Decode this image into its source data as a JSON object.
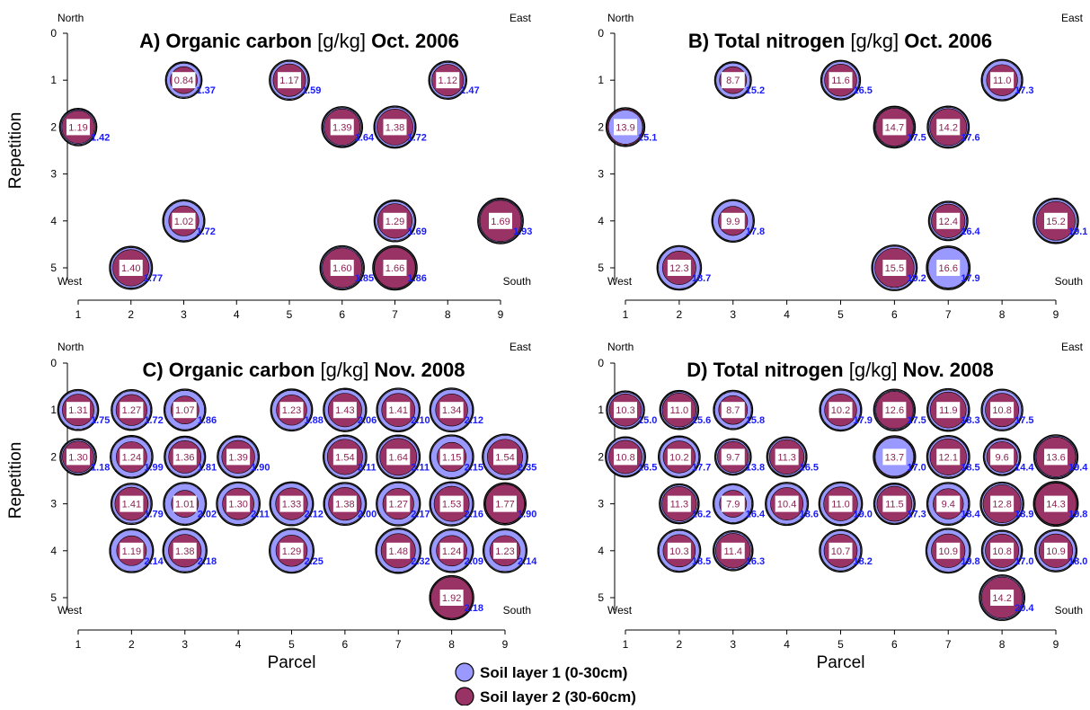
{
  "figure": {
    "legend": [
      {
        "label": "Soil layer 1 (0-30cm)",
        "color": "#9999ff"
      },
      {
        "label": "Soil layer 2 (30-60cm)",
        "color": "#993366"
      }
    ],
    "corner_labels": {
      "north": "North",
      "east": "East",
      "west": "West",
      "south": "South"
    },
    "colors": {
      "layer1": "#9999ff",
      "layer2": "#993366",
      "label1": "#1a1aff",
      "label2": "#8b2252"
    }
  },
  "chart_data": [
    {
      "type": "scatter",
      "title_prefix": "A) Organic carbon ",
      "title_unit": "[g/kg]",
      "title_suffix": " Oct. 2006",
      "xlabel": "",
      "ylabel": "Repetition",
      "xlim": [
        1,
        9
      ],
      "ylim": [
        0,
        5
      ],
      "xticks": [
        "1",
        "2",
        "3",
        "4",
        "5",
        "6",
        "7",
        "8",
        "9"
      ],
      "yticks": [
        "0",
        "1",
        "2",
        "3",
        "4",
        "5"
      ],
      "points": [
        {
          "x": 3,
          "y": 1,
          "layer2": "0.84",
          "layer1": "1.37"
        },
        {
          "x": 5,
          "y": 1,
          "layer2": "1.17",
          "layer1": "1.59"
        },
        {
          "x": 8,
          "y": 1,
          "layer2": "1.12",
          "layer1": "1.47"
        },
        {
          "x": 1,
          "y": 2,
          "layer2": "1.19",
          "layer1": "1.42"
        },
        {
          "x": 6,
          "y": 2,
          "layer2": "1.39",
          "layer1": "1.64"
        },
        {
          "x": 7,
          "y": 2,
          "layer2": "1.38",
          "layer1": "1.72"
        },
        {
          "x": 3,
          "y": 4,
          "layer2": "1.02",
          "layer1": "1.72"
        },
        {
          "x": 7,
          "y": 4,
          "layer2": "1.29",
          "layer1": "1.69"
        },
        {
          "x": 9,
          "y": 4,
          "layer2": "1.69",
          "layer1": "1.93"
        },
        {
          "x": 2,
          "y": 5,
          "layer2": "1.40",
          "layer1": "1.77"
        },
        {
          "x": 6,
          "y": 5,
          "layer2": "1.60",
          "layer1": "1.85"
        },
        {
          "x": 7,
          "y": 5,
          "layer2": "1.66",
          "layer1": "1.86"
        }
      ]
    },
    {
      "type": "scatter",
      "title_prefix": "B) Total nitrogen ",
      "title_unit": "[g/kg]",
      "title_suffix": " Oct. 2006",
      "xlabel": "",
      "ylabel": "",
      "xlim": [
        1,
        9
      ],
      "ylim": [
        0,
        5
      ],
      "xticks": [
        "1",
        "2",
        "3",
        "4",
        "5",
        "6",
        "7",
        "8",
        "9"
      ],
      "yticks": [
        "0",
        "1",
        "2",
        "3",
        "4",
        "5"
      ],
      "points": [
        {
          "x": 3,
          "y": 1,
          "layer2": "8.7",
          "layer1": "15.2"
        },
        {
          "x": 5,
          "y": 1,
          "layer2": "11.6",
          "layer1": "16.5"
        },
        {
          "x": 8,
          "y": 1,
          "layer2": "11.0",
          "layer1": "17.3"
        },
        {
          "x": 1,
          "y": 2,
          "layer2": "13.9",
          "layer1": "15.1"
        },
        {
          "x": 6,
          "y": 2,
          "layer2": "14.7",
          "layer1": "17.5"
        },
        {
          "x": 7,
          "y": 2,
          "layer2": "14.2",
          "layer1": "17.6"
        },
        {
          "x": 3,
          "y": 4,
          "layer2": "9.9",
          "layer1": "17.8"
        },
        {
          "x": 7,
          "y": 4,
          "layer2": "12.4",
          "layer1": "16.4"
        },
        {
          "x": 9,
          "y": 4,
          "layer2": "15.2",
          "layer1": "19.1"
        },
        {
          "x": 2,
          "y": 5,
          "layer2": "12.3",
          "layer1": "18.7"
        },
        {
          "x": 6,
          "y": 5,
          "layer2": "15.5",
          "layer1": "19.2"
        },
        {
          "x": 7,
          "y": 5,
          "layer2": "16.6",
          "layer1": "17.9"
        }
      ]
    },
    {
      "type": "scatter",
      "title_prefix": "C) Organic carbon ",
      "title_unit": "[g/kg]",
      "title_suffix": " Nov. 2008",
      "xlabel": "Parcel",
      "ylabel": "Repetition",
      "xlim": [
        1,
        9
      ],
      "ylim": [
        0,
        5
      ],
      "xticks": [
        "1",
        "2",
        "3",
        "4",
        "5",
        "6",
        "7",
        "8",
        "9"
      ],
      "yticks": [
        "0",
        "1",
        "2",
        "3",
        "4",
        "5"
      ],
      "points": [
        {
          "x": 1,
          "y": 1,
          "layer2": "1.31",
          "layer1": "1.75"
        },
        {
          "x": 2,
          "y": 1,
          "layer2": "1.27",
          "layer1": "1.72"
        },
        {
          "x": 3,
          "y": 1,
          "layer2": "1.07",
          "layer1": "1.86"
        },
        {
          "x": 5,
          "y": 1,
          "layer2": "1.23",
          "layer1": "1.88"
        },
        {
          "x": 6,
          "y": 1,
          "layer2": "1.43",
          "layer1": "2.06"
        },
        {
          "x": 7,
          "y": 1,
          "layer2": "1.41",
          "layer1": "2.10"
        },
        {
          "x": 8,
          "y": 1,
          "layer2": "1.34",
          "layer1": "2.12"
        },
        {
          "x": 1,
          "y": 2,
          "layer2": "1.30",
          "layer1": "1.18"
        },
        {
          "x": 2,
          "y": 2,
          "layer2": "1.24",
          "layer1": "1.99"
        },
        {
          "x": 3,
          "y": 2,
          "layer2": "1.36",
          "layer1": "1.81"
        },
        {
          "x": 4,
          "y": 2,
          "layer2": "1.39",
          "layer1": "1.90"
        },
        {
          "x": 6,
          "y": 2,
          "layer2": "1.54",
          "layer1": "2.11"
        },
        {
          "x": 7,
          "y": 2,
          "layer2": "1.64",
          "layer1": "2.11"
        },
        {
          "x": 8,
          "y": 2,
          "layer2": "1.15",
          "layer1": "2.15"
        },
        {
          "x": 9,
          "y": 2,
          "layer2": "1.54",
          "layer1": "2.35"
        },
        {
          "x": 2,
          "y": 3,
          "layer2": "1.41",
          "layer1": "1.79"
        },
        {
          "x": 3,
          "y": 3,
          "layer2": "1.01",
          "layer1": "2.02"
        },
        {
          "x": 4,
          "y": 3,
          "layer2": "1.30",
          "layer1": "2.11"
        },
        {
          "x": 5,
          "y": 3,
          "layer2": "1.33",
          "layer1": "2.12"
        },
        {
          "x": 6,
          "y": 3,
          "layer2": "1.38",
          "layer1": "2.00"
        },
        {
          "x": 7,
          "y": 3,
          "layer2": "1.27",
          "layer1": "2.17"
        },
        {
          "x": 8,
          "y": 3,
          "layer2": "1.53",
          "layer1": "2.16"
        },
        {
          "x": 9,
          "y": 3,
          "layer2": "1.77",
          "layer1": "1.90"
        },
        {
          "x": 2,
          "y": 4,
          "layer2": "1.19",
          "layer1": "2.14"
        },
        {
          "x": 3,
          "y": 4,
          "layer2": "1.38",
          "layer1": "2.18"
        },
        {
          "x": 5,
          "y": 4,
          "layer2": "1.29",
          "layer1": "2.25"
        },
        {
          "x": 7,
          "y": 4,
          "layer2": "1.48",
          "layer1": "2.32"
        },
        {
          "x": 8,
          "y": 4,
          "layer2": "1.24",
          "layer1": "2.09"
        },
        {
          "x": 9,
          "y": 4,
          "layer2": "1.23",
          "layer1": "2.14"
        },
        {
          "x": 8,
          "y": 5,
          "layer2": "1.92",
          "layer1": "2.18"
        }
      ]
    },
    {
      "type": "scatter",
      "title_prefix": "D) Total nitrogen ",
      "title_unit": "[g/kg]",
      "title_suffix": " Nov. 2008",
      "xlabel": "Parcel",
      "ylabel": "",
      "xlim": [
        1,
        9
      ],
      "ylim": [
        0,
        5
      ],
      "xticks": [
        "1",
        "2",
        "3",
        "4",
        "5",
        "6",
        "7",
        "8",
        "9"
      ],
      "yticks": [
        "0",
        "1",
        "2",
        "3",
        "4",
        "5"
      ],
      "points": [
        {
          "x": 1,
          "y": 1,
          "layer2": "10.3",
          "layer1": "15.0"
        },
        {
          "x": 2,
          "y": 1,
          "layer2": "11.0",
          "layer1": "15.6"
        },
        {
          "x": 3,
          "y": 1,
          "layer2": "8.7",
          "layer1": "15.8"
        },
        {
          "x": 5,
          "y": 1,
          "layer2": "10.2",
          "layer1": "17.9"
        },
        {
          "x": 6,
          "y": 1,
          "layer2": "12.6",
          "layer1": "17.5"
        },
        {
          "x": 7,
          "y": 1,
          "layer2": "11.9",
          "layer1": "18.3"
        },
        {
          "x": 8,
          "y": 1,
          "layer2": "10.8",
          "layer1": "17.5"
        },
        {
          "x": 1,
          "y": 2,
          "layer2": "10.8",
          "layer1": "16.5"
        },
        {
          "x": 2,
          "y": 2,
          "layer2": "10.2",
          "layer1": "17.7"
        },
        {
          "x": 3,
          "y": 2,
          "layer2": "9.7",
          "layer1": "13.8"
        },
        {
          "x": 4,
          "y": 2,
          "layer2": "11.3",
          "layer1": "16.5"
        },
        {
          "x": 6,
          "y": 2,
          "layer2": "13.7",
          "layer1": "17.0"
        },
        {
          "x": 7,
          "y": 2,
          "layer2": "12.1",
          "layer1": "18.5"
        },
        {
          "x": 8,
          "y": 2,
          "layer2": "9.6",
          "layer1": "14.4"
        },
        {
          "x": 9,
          "y": 2,
          "layer2": "13.6",
          "layer1": "19.4"
        },
        {
          "x": 2,
          "y": 3,
          "layer2": "11.3",
          "layer1": "16.2"
        },
        {
          "x": 3,
          "y": 3,
          "layer2": "7.9",
          "layer1": "16.4"
        },
        {
          "x": 4,
          "y": 3,
          "layer2": "10.4",
          "layer1": "18.6"
        },
        {
          "x": 5,
          "y": 3,
          "layer2": "11.0",
          "layer1": "19.0"
        },
        {
          "x": 6,
          "y": 3,
          "layer2": "11.5",
          "layer1": "17.3"
        },
        {
          "x": 7,
          "y": 3,
          "layer2": "9.4",
          "layer1": "18.4"
        },
        {
          "x": 8,
          "y": 3,
          "layer2": "12.8",
          "layer1": "18.9"
        },
        {
          "x": 9,
          "y": 3,
          "layer2": "14.3",
          "layer1": "19.8"
        },
        {
          "x": 2,
          "y": 4,
          "layer2": "10.3",
          "layer1": "18.5"
        },
        {
          "x": 3,
          "y": 4,
          "layer2": "11.4",
          "layer1": "16.3"
        },
        {
          "x": 5,
          "y": 4,
          "layer2": "10.7",
          "layer1": "18.2"
        },
        {
          "x": 7,
          "y": 4,
          "layer2": "10.9",
          "layer1": "19.8"
        },
        {
          "x": 8,
          "y": 4,
          "layer2": "10.8",
          "layer1": "17.0"
        },
        {
          "x": 9,
          "y": 4,
          "layer2": "10.9",
          "layer1": "18.0"
        },
        {
          "x": 8,
          "y": 5,
          "layer2": "14.2",
          "layer1": "20.4"
        }
      ]
    }
  ]
}
